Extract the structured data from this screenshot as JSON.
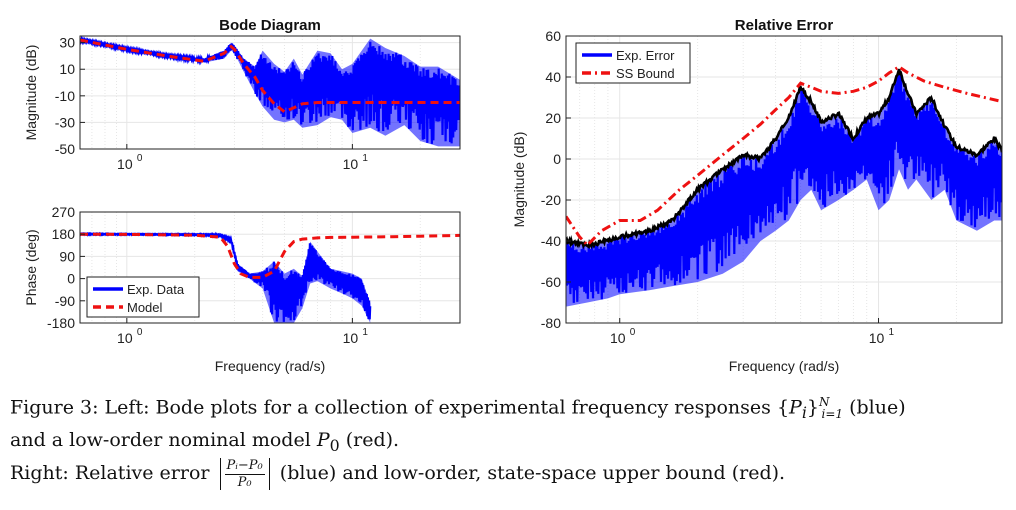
{
  "chart_data": [
    {
      "id": "bode-magnitude",
      "type": "line",
      "title": "Bode Diagram",
      "xlabel": "",
      "ylabel": "Magnitude (dB)",
      "xscale": "log",
      "xlim": [
        0.62,
        30
      ],
      "ylim": [
        -50,
        35
      ],
      "yticks": [
        30,
        10,
        -10,
        -30,
        -50
      ],
      "xticks": [
        {
          "v": 1,
          "label": "10",
          "exp": "0"
        },
        {
          "v": 10,
          "label": "10",
          "exp": "1"
        }
      ],
      "grid": true,
      "series": [
        {
          "name": "Exp. Data",
          "color": "#0000ff",
          "style": "band",
          "x": [
            0.62,
            1.0,
            1.5,
            2.2,
            2.7,
            2.9,
            3.0,
            3.3,
            3.7,
            4.0,
            4.5,
            5.0,
            5.5,
            6.0,
            7.0,
            8.0,
            9.0,
            10.0,
            12.0,
            14.0,
            17.0,
            20.0,
            24.0,
            30.0
          ],
          "upper": [
            33,
            26,
            21,
            18,
            24,
            30,
            28,
            18,
            12,
            24,
            14,
            8,
            18,
            6,
            24,
            22,
            10,
            14,
            33,
            26,
            20,
            12,
            12,
            2
          ],
          "lower": [
            31,
            24,
            19,
            15,
            18,
            24,
            22,
            8,
            -8,
            -18,
            -28,
            -30,
            -28,
            -34,
            -32,
            -26,
            -28,
            -38,
            -34,
            -40,
            -32,
            -44,
            -48,
            -48
          ]
        },
        {
          "name": "Model",
          "color": "#ee1111",
          "style": "dash",
          "x": [
            0.62,
            1.0,
            1.5,
            2.2,
            2.7,
            2.9,
            3.0,
            3.3,
            3.7,
            4.0,
            4.5,
            5.0,
            5.5,
            6.0,
            7.0,
            8.0,
            10.0,
            14.0,
            20.0,
            30.0
          ],
          "y": [
            32,
            25,
            20,
            16,
            22,
            27,
            25,
            14,
            4,
            -6,
            -16,
            -22,
            -19,
            -16,
            -15,
            -15,
            -15,
            -15,
            -15,
            -15
          ]
        }
      ]
    },
    {
      "id": "bode-phase",
      "type": "line",
      "title": "",
      "xlabel": "Frequency (rad/s)",
      "ylabel": "Phase (deg)",
      "xscale": "log",
      "xlim": [
        0.62,
        30
      ],
      "ylim": [
        -180,
        270
      ],
      "yticks": [
        270,
        180,
        90,
        0,
        -90,
        -180
      ],
      "xticks": [
        {
          "v": 1,
          "label": "10",
          "exp": "0"
        },
        {
          "v": 10,
          "label": "10",
          "exp": "1"
        }
      ],
      "grid": true,
      "legend": {
        "position": "bottom-left",
        "entries": [
          "Exp. Data",
          "Model"
        ]
      },
      "series": [
        {
          "name": "Exp. Data",
          "color": "#0000ff",
          "style": "band",
          "x": [
            0.62,
            1.0,
            2.0,
            2.6,
            2.9,
            3.1,
            3.5,
            4.0,
            4.5,
            5.0,
            5.5,
            6.0,
            6.5,
            7.0,
            8.0,
            9.0,
            10.0,
            11.0,
            12.0
          ],
          "upper": [
            182,
            181,
            180,
            178,
            160,
            60,
            20,
            30,
            70,
            20,
            40,
            10,
            150,
            110,
            40,
            30,
            20,
            0,
            -100
          ],
          "lower": [
            178,
            178,
            176,
            172,
            150,
            30,
            0,
            -40,
            -180,
            -180,
            -180,
            -120,
            -20,
            -10,
            -40,
            -60,
            -80,
            -110,
            -180
          ]
        },
        {
          "name": "Model",
          "color": "#ee1111",
          "style": "dash",
          "x": [
            0.62,
            1.0,
            2.0,
            2.6,
            2.8,
            3.0,
            3.2,
            3.5,
            4.0,
            4.5,
            5.0,
            5.5,
            6.0,
            7.0,
            8.0,
            10.0,
            15.0,
            20.0,
            30.0
          ],
          "y": [
            180,
            179,
            176,
            168,
            130,
            60,
            20,
            5,
            5,
            30,
            110,
            150,
            160,
            165,
            167,
            168,
            170,
            172,
            175
          ]
        }
      ]
    },
    {
      "id": "relative-error",
      "type": "line",
      "title": "Relative Error",
      "xlabel": "Frequency (rad/s)",
      "ylabel": "Magnitude (dB)",
      "xscale": "log",
      "xlim": [
        0.62,
        30
      ],
      "ylim": [
        -80,
        60
      ],
      "yticks": [
        60,
        40,
        20,
        0,
        -20,
        -40,
        -60,
        -80
      ],
      "xticks": [
        {
          "v": 1,
          "label": "10",
          "exp": "0"
        },
        {
          "v": 10,
          "label": "10",
          "exp": "1"
        }
      ],
      "grid": true,
      "legend": {
        "position": "top-left",
        "entries": [
          "Exp. Error",
          "SS Bound"
        ]
      },
      "series": [
        {
          "name": "Exp. Error",
          "color": "#0000ff",
          "style": "band",
          "envelope_color": "#000000",
          "x": [
            0.62,
            0.75,
            0.9,
            1.0,
            1.3,
            1.6,
            2.0,
            2.5,
            3.0,
            3.5,
            4.0,
            4.5,
            5.0,
            5.5,
            6.0,
            7.0,
            8.0,
            9.0,
            10.0,
            11.0,
            12.0,
            13.0,
            14.0,
            16.0,
            18.0,
            20.0,
            24.0,
            28.0,
            30.0
          ],
          "upper": [
            -40,
            -42,
            -40,
            -38,
            -35,
            -30,
            -15,
            -5,
            2,
            0,
            10,
            20,
            35,
            28,
            18,
            22,
            10,
            20,
            22,
            30,
            44,
            32,
            22,
            30,
            16,
            6,
            2,
            10,
            4
          ],
          "lower": [
            -72,
            -70,
            -68,
            -66,
            -64,
            -62,
            -60,
            -56,
            -50,
            -40,
            -35,
            -30,
            -20,
            -15,
            -25,
            -20,
            -15,
            -10,
            -25,
            -20,
            -5,
            -15,
            -10,
            -20,
            -15,
            -30,
            -35,
            -30,
            -30
          ]
        },
        {
          "name": "SS Bound",
          "color": "#ee1111",
          "style": "dashdot",
          "x": [
            0.62,
            0.7,
            0.75,
            0.85,
            1.0,
            1.2,
            1.4,
            1.7,
            2.0,
            2.5,
            3.0,
            3.5,
            4.0,
            4.5,
            5.0,
            5.5,
            6.0,
            7.0,
            8.0,
            9.0,
            10.0,
            11.0,
            12.0,
            13.0,
            15.0,
            18.0,
            22.0,
            30.0
          ],
          "y": [
            -28,
            -38,
            -42,
            -35,
            -30,
            -30,
            -25,
            -15,
            -8,
            2,
            10,
            17,
            24,
            30,
            37,
            35,
            33,
            32,
            33,
            35,
            38,
            42,
            45,
            42,
            38,
            35,
            32,
            28
          ]
        }
      ]
    }
  ],
  "caption": {
    "line1_prefix": "Figure 3: Left: Bode plots for a collection of experimental frequency responses {",
    "line1_P": "P",
    "line1_i": "i",
    "line1_close": "}",
    "line1_sup": "N",
    "line1_sub": "i=1",
    "line1_suffix": " (blue)",
    "line2_prefix": "and a low-order nominal model ",
    "line2_P": "P",
    "line2_sub": "0",
    "line2_suffix": " (red).",
    "line3_prefix": "Right: Relative error",
    "frac_num": "Pᵢ−P₀",
    "frac_den": "P₀",
    "line3_suffix": "(blue) and low-order, state-space upper bound (red)."
  }
}
